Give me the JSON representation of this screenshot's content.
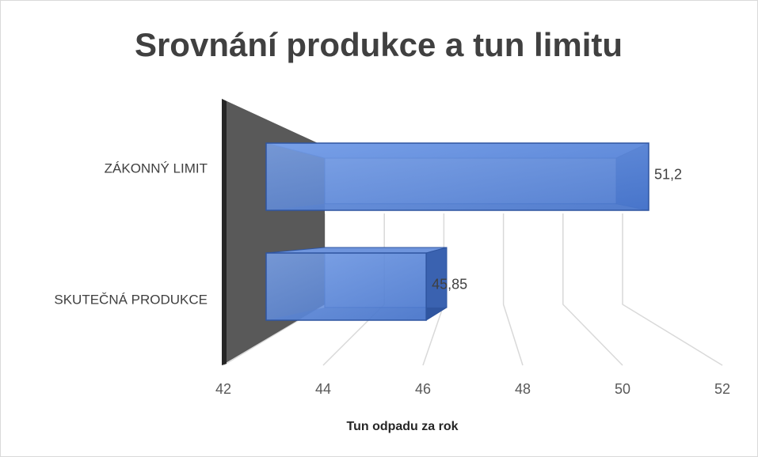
{
  "chart_data": {
    "type": "bar3d_horizontal",
    "title": "Srovnání produkce a tun limitu",
    "categories": [
      "ZÁKONNÝ LIMIT",
      "SKUTEČNÁ PRODUKCE"
    ],
    "values": [
      51.2,
      45.85
    ],
    "value_labels": [
      "51,2",
      "45,85"
    ],
    "color": "#4472c4",
    "xlim": [
      42,
      52
    ],
    "xticks": [
      42,
      44,
      46,
      48,
      50,
      52
    ],
    "xlabel": "Tun odpadu za rok",
    "grid": true
  }
}
